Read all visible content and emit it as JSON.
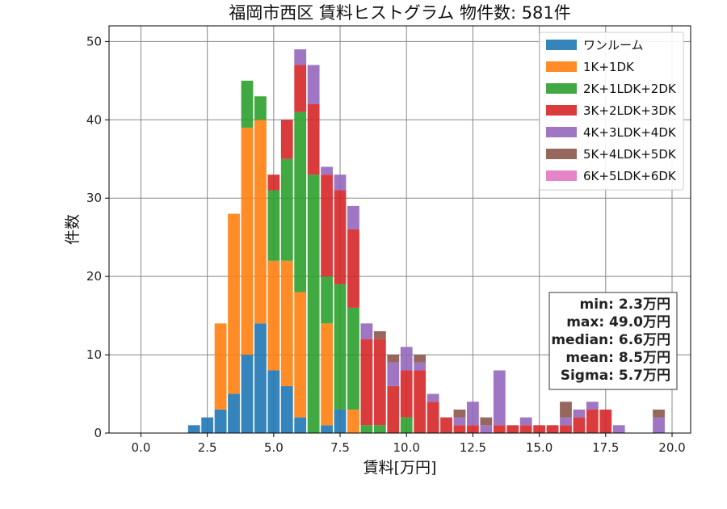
{
  "chart_data": {
    "type": "bar",
    "stacked": true,
    "title": "福岡市西区 賃料ヒストグラム 物件数: 581件",
    "xlabel": "賃料[万円]",
    "ylabel": "件数",
    "xlim": [
      -1.2,
      20.7
    ],
    "ylim": [
      0,
      52
    ],
    "xticks": [
      0.0,
      2.5,
      5.0,
      7.5,
      10.0,
      12.5,
      15.0,
      17.5,
      20.0
    ],
    "xtick_labels": [
      "0.0",
      "2.5",
      "5.0",
      "7.5",
      "10.0",
      "12.5",
      "15.0",
      "17.5",
      "20.0"
    ],
    "yticks": [
      0,
      10,
      20,
      30,
      40,
      50
    ],
    "ytick_labels": [
      "0",
      "10",
      "20",
      "30",
      "40",
      "50"
    ],
    "grid": true,
    "legend_position": "top-right",
    "bin_width": 0.5,
    "bar_width": 0.45,
    "x": [
      2.0,
      2.5,
      3.0,
      3.5,
      4.0,
      4.5,
      5.0,
      5.5,
      6.0,
      6.5,
      7.0,
      7.5,
      8.0,
      8.5,
      9.0,
      9.5,
      10.0,
      10.5,
      11.0,
      11.5,
      12.0,
      12.5,
      13.0,
      13.5,
      14.0,
      14.5,
      15.0,
      15.5,
      16.0,
      16.5,
      17.0,
      17.5,
      18.0,
      18.5,
      19.0,
      19.5
    ],
    "series": [
      {
        "name": "ワンルーム",
        "color": "#1f77b4",
        "values": [
          1,
          2,
          3,
          5,
          10,
          14,
          8,
          6,
          2,
          0,
          1,
          3,
          0,
          0,
          0,
          0,
          0,
          0,
          0,
          0,
          0,
          0,
          0,
          0,
          0,
          0,
          0,
          0,
          0,
          0,
          0,
          0,
          0,
          0,
          0,
          0
        ]
      },
      {
        "name": "1K+1DK",
        "color": "#ff7f0e",
        "values": [
          0,
          0,
          11,
          23,
          29,
          26,
          14,
          16,
          16,
          0,
          13,
          0,
          3,
          0,
          0,
          0,
          0,
          0,
          0,
          0,
          0,
          0,
          0,
          0,
          0,
          0,
          0,
          0,
          0,
          0,
          0,
          0,
          0,
          0,
          0,
          0
        ]
      },
      {
        "name": "2K+1LDK+2DK",
        "color": "#2ca02c",
        "values": [
          0,
          0,
          0,
          0,
          6,
          3,
          9,
          13,
          23,
          33,
          6,
          16,
          13,
          1,
          1,
          0,
          2,
          0,
          0,
          0,
          0,
          0,
          0,
          0,
          0,
          0,
          0,
          0,
          0,
          0,
          0,
          0,
          0,
          0,
          0,
          0
        ]
      },
      {
        "name": "3K+2LDK+3DK",
        "color": "#d62728",
        "values": [
          0,
          0,
          0,
          0,
          0,
          0,
          2,
          5,
          6,
          9,
          13,
          12,
          10,
          11,
          11,
          6,
          6,
          8,
          4,
          2,
          1,
          1,
          0,
          1,
          1,
          1,
          1,
          1,
          1,
          2,
          3,
          3,
          0,
          0,
          0,
          0
        ]
      },
      {
        "name": "4K+3LDK+4DK",
        "color": "#9467bd",
        "values": [
          0,
          0,
          0,
          0,
          0,
          0,
          0,
          0,
          2,
          5,
          1,
          2,
          3,
          2,
          0,
          3,
          3,
          1,
          1,
          0,
          1,
          3,
          1,
          7,
          0,
          1,
          0,
          0,
          1,
          1,
          1,
          0,
          1,
          0,
          0,
          2
        ]
      },
      {
        "name": "5K+4LDK+5DK",
        "color": "#8c564b",
        "values": [
          0,
          0,
          0,
          0,
          0,
          0,
          0,
          0,
          0,
          0,
          0,
          0,
          0,
          0,
          1,
          1,
          0,
          1,
          0,
          0,
          1,
          0,
          1,
          0,
          0,
          0,
          0,
          0,
          2,
          0,
          0,
          0,
          0,
          0,
          0,
          1
        ]
      },
      {
        "name": "6K+5LDK+6DK",
        "color": "#e377c2",
        "values": [
          0,
          0,
          0,
          0,
          0,
          0,
          0,
          0,
          0,
          0,
          0,
          0,
          0,
          0,
          0,
          0,
          0,
          0,
          0,
          0,
          0,
          0,
          0,
          0,
          0,
          0,
          0,
          0,
          0,
          0,
          0,
          0,
          0,
          0,
          0,
          0
        ]
      }
    ],
    "stats_box": {
      "position": "bottom-right",
      "lines": [
        "min: 2.3万円",
        "max: 49.0万円",
        "median: 6.6万円",
        "mean: 8.5万円",
        "Sigma: 5.7万円"
      ]
    }
  }
}
